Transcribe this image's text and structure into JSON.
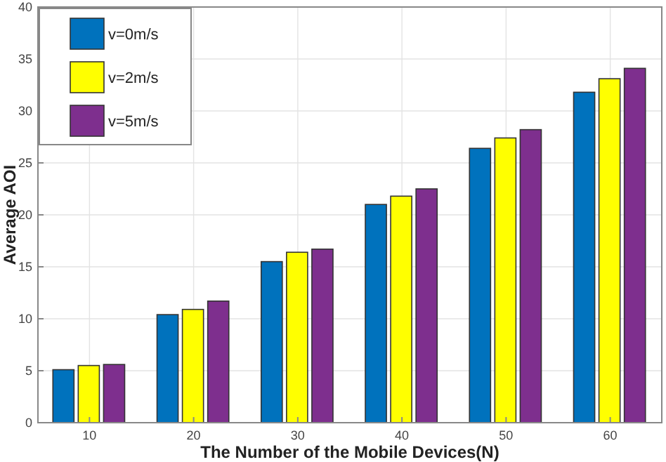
{
  "chart_data": {
    "type": "bar",
    "xlabel": "The Number of the Mobile Devices(N)",
    "ylabel": "Average AOI",
    "categories": [
      "10",
      "20",
      "30",
      "40",
      "50",
      "60"
    ],
    "series": [
      {
        "name": "v=0m/s",
        "color": "#0072bd",
        "values": [
          5.1,
          10.4,
          15.5,
          21.0,
          26.4,
          31.8
        ]
      },
      {
        "name": "v=2m/s",
        "color": "#ffff00",
        "values": [
          5.5,
          10.9,
          16.4,
          21.8,
          27.4,
          33.1
        ]
      },
      {
        "name": "v=5m/s",
        "color": "#7e2f8e",
        "values": [
          5.6,
          11.7,
          16.7,
          22.5,
          28.2,
          34.1
        ]
      }
    ],
    "ylim": [
      0,
      40
    ],
    "yticks": [
      0,
      5,
      10,
      15,
      20,
      25,
      30,
      35,
      40
    ],
    "grid": true,
    "legend": "top left"
  }
}
